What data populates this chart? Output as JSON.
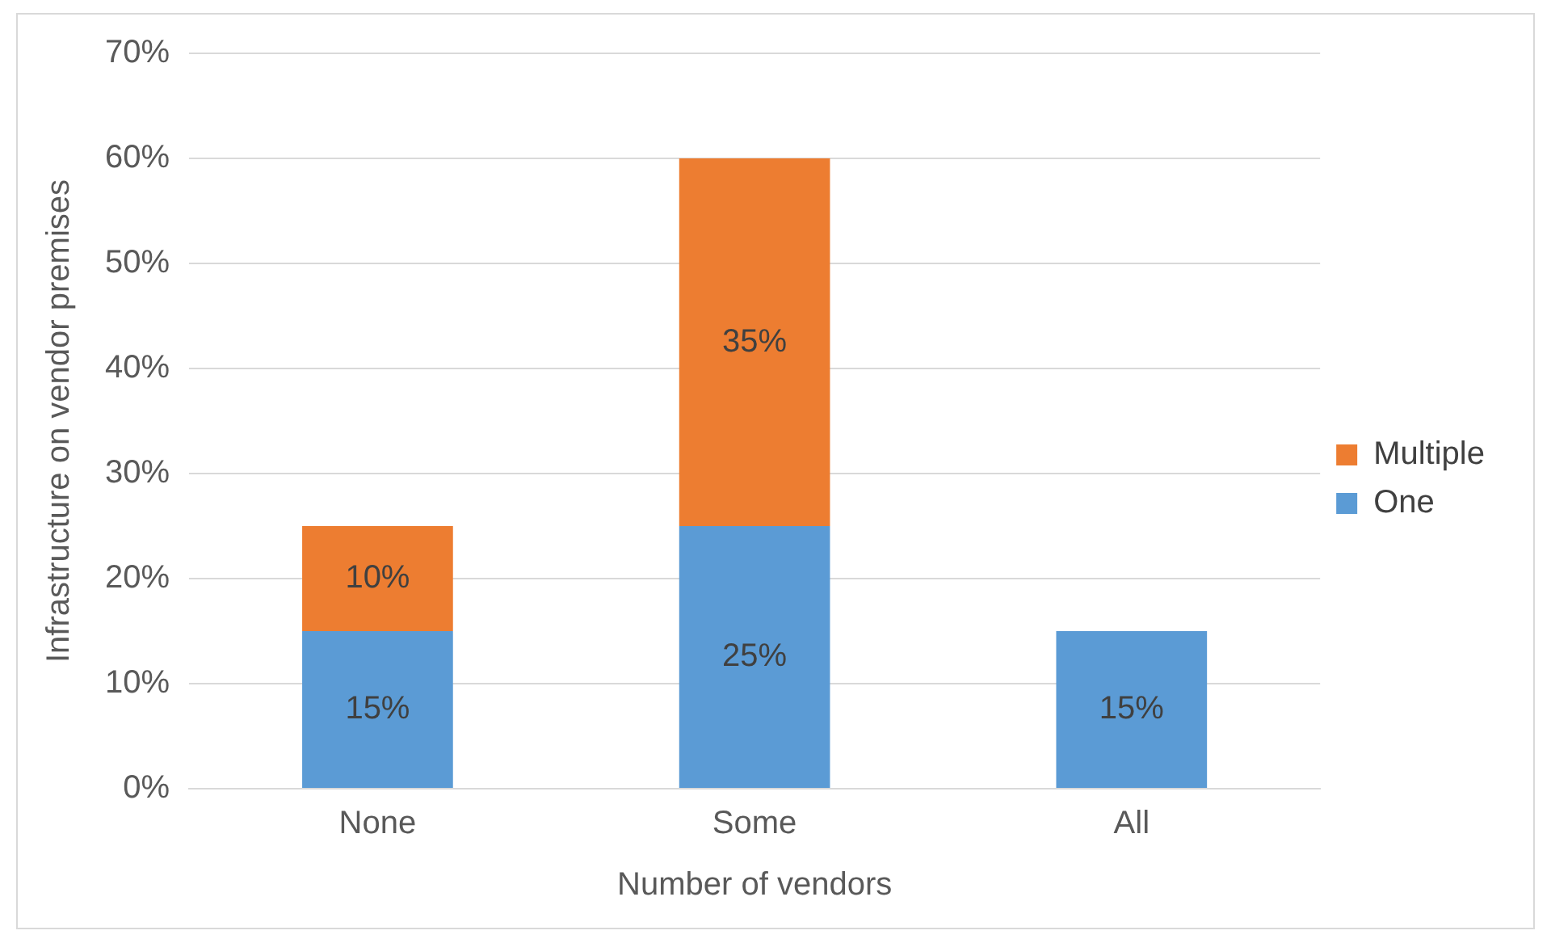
{
  "chart_data": {
    "type": "bar",
    "stacked": true,
    "xlabel": "Number of vendors",
    "ylabel": "Infrastructure on vendor premises",
    "categories": [
      "None",
      "Some",
      "All"
    ],
    "series": [
      {
        "name": "One",
        "color": "#5b9bd5",
        "values": [
          15,
          25,
          15
        ],
        "value_labels": [
          "15%",
          "25%",
          "15%"
        ]
      },
      {
        "name": "Multiple",
        "color": "#ed7d31",
        "values": [
          10,
          35,
          null
        ],
        "value_labels": [
          "10%",
          "35%",
          null
        ]
      }
    ],
    "ylim": [
      0,
      70
    ],
    "yticks": [
      {
        "value": 0,
        "label": "0%"
      },
      {
        "value": 10,
        "label": "10%"
      },
      {
        "value": 20,
        "label": "20%"
      },
      {
        "value": 30,
        "label": "30%"
      },
      {
        "value": 40,
        "label": "40%"
      },
      {
        "value": 50,
        "label": "50%"
      },
      {
        "value": 60,
        "label": "60%"
      },
      {
        "value": 70,
        "label": "70%"
      }
    ],
    "grid": "y",
    "legend": "right"
  }
}
